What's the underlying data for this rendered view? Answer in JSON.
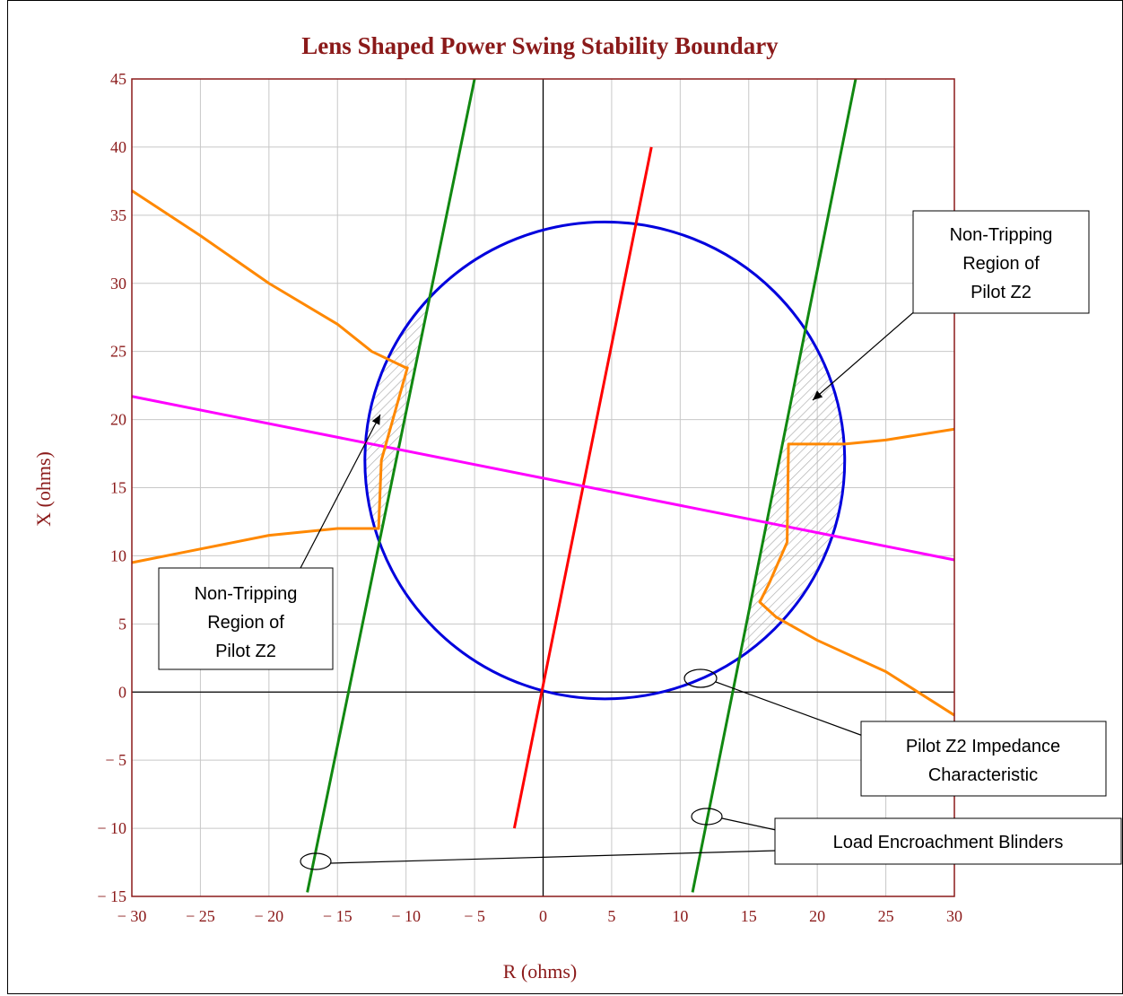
{
  "chart_data": {
    "type": "line",
    "title": "Lens Shaped Power Swing Stability Boundary",
    "xlabel": "R (ohms)",
    "ylabel": "X (ohms)",
    "xlim": [
      -30,
      30
    ],
    "ylim": [
      -15,
      45
    ],
    "xticks": [
      -30,
      -25,
      -20,
      -15,
      -10,
      -5,
      0,
      5,
      10,
      15,
      20,
      25,
      30
    ],
    "yticks": [
      -15,
      -10,
      -5,
      0,
      5,
      10,
      15,
      20,
      25,
      30,
      35,
      40,
      45
    ],
    "xtick_labels": [
      "− 30",
      "− 25",
      "− 20",
      "− 15",
      "− 10",
      "− 5",
      "0",
      "5",
      "10",
      "15",
      "20",
      "25",
      "30"
    ],
    "ytick_labels": [
      "− 15",
      "− 10",
      "− 5",
      "0",
      "5",
      "10",
      "15",
      "20",
      "25",
      "30",
      "35",
      "40",
      "45"
    ],
    "grid": true,
    "series": [
      {
        "color": "#0000dd",
        "shape": "circle",
        "center": [
          4.5,
          17
        ],
        "radius": 17.5
      },
      {
        "color": "#ff0000",
        "x": [
          -2.1,
          7.9
        ],
        "y": [
          -10,
          40
        ]
      },
      {
        "color": "#118811",
        "x": [
          -17.2,
          -5.0
        ],
        "y": [
          -14.7,
          45
        ]
      },
      {
        "color": "#118811",
        "x": [
          10.9,
          22.8
        ],
        "y": [
          -14.7,
          45
        ]
      },
      {
        "color": "#ff00ff",
        "x": [
          -30,
          30
        ],
        "y": [
          21.7,
          9.7
        ]
      },
      {
        "color": "#ff8800",
        "x": [
          -30,
          -25,
          -20,
          -15,
          -12.5,
          -10,
          -9.9,
          -11.8,
          -12.0,
          -13,
          -15,
          -20,
          -25,
          -30
        ],
        "y": [
          36.8,
          33.5,
          30.0,
          27.0,
          25.0,
          23.8,
          23.8,
          17.0,
          12.0,
          12.0,
          12.0,
          11.5,
          10.5,
          9.5
        ]
      },
      {
        "color": "#ff8800",
        "x": [
          30,
          25,
          22,
          21.8,
          17.9,
          17.8,
          16.5,
          15.8,
          17,
          20,
          25,
          30
        ],
        "y": [
          19.3,
          18.5,
          18.2,
          18.2,
          18.2,
          11.0,
          8.0,
          6.6,
          5.5,
          3.8,
          1.5,
          -1.7
        ]
      }
    ],
    "annotations": [
      "Non-Tripping Region of Pilot Z2",
      "Non-Tripping Region of Pilot Z2",
      "Pilot Z2 Impedance Characteristic",
      "Load Encroachment Blinders"
    ]
  },
  "notes": {
    "right_nontrip": [
      "Non-Tripping",
      "Region of",
      "Pilot Z2"
    ],
    "left_nontrip": [
      "Non-Tripping",
      "Region of",
      "Pilot Z2"
    ],
    "impedance": [
      "Pilot Z2 Impedance",
      "Characteristic"
    ],
    "blinders": [
      "Load Encroachment Blinders"
    ]
  }
}
